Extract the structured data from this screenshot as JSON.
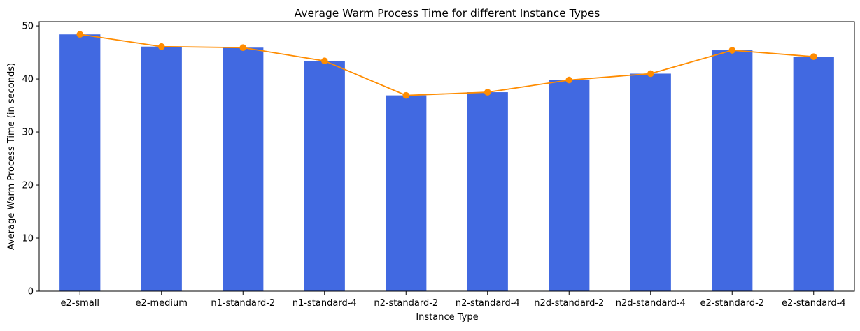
{
  "chart_data": {
    "type": "bar",
    "title": "Average Warm Process Time for different Instance Types",
    "xlabel": "Instance Type",
    "ylabel": "Average Warm Process Time (in seconds)",
    "categories": [
      "e2-small",
      "e2-medium",
      "n1-standard-2",
      "n1-standard-4",
      "n2-standard-2",
      "n2-standard-4",
      "n2d-standard-2",
      "n2d-standard-4",
      "e2-standard-2",
      "e2-standard-4"
    ],
    "series": [
      {
        "type": "bar",
        "color": "#4169E1",
        "values": [
          48.4,
          46.1,
          45.9,
          43.4,
          36.9,
          37.5,
          39.8,
          41.0,
          45.4,
          44.2
        ]
      },
      {
        "type": "line",
        "marker": "circle",
        "color": "#FF8C00",
        "values": [
          48.4,
          46.1,
          45.9,
          43.4,
          36.9,
          37.5,
          39.8,
          41.0,
          45.4,
          44.2
        ]
      }
    ],
    "ylim": [
      0,
      50.8
    ],
    "yticks": [
      0,
      10,
      20,
      30,
      40,
      50
    ],
    "grid": false,
    "legend": "none"
  }
}
